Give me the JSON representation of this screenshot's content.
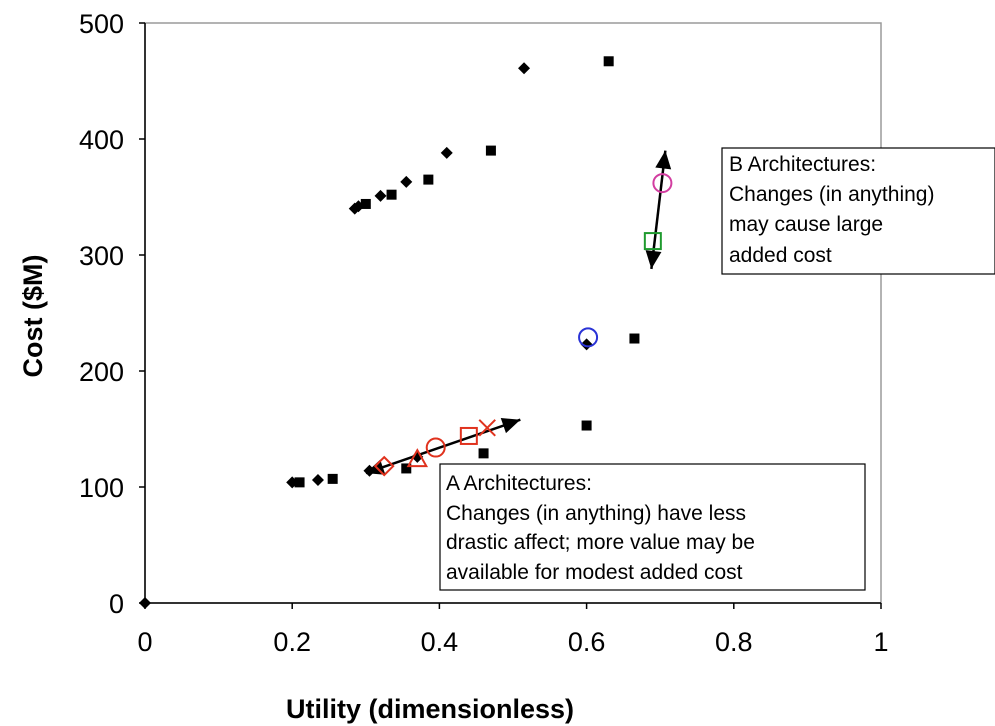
{
  "chart_data": {
    "type": "scatter",
    "title": "",
    "xlabel": "Utility (dimensionless)",
    "ylabel": "Cost ($M)",
    "xlim": [
      0,
      1
    ],
    "ylim": [
      0,
      500
    ],
    "x_ticks": [
      "0",
      "0.2",
      "0.4",
      "0.6",
      "0.8",
      "1"
    ],
    "y_ticks": [
      "0",
      "100",
      "200",
      "300",
      "400",
      "500"
    ],
    "grid": false,
    "legend": "none",
    "series": [
      {
        "marker": "diamond-filled",
        "color": "#000000",
        "points": [
          [
            0.0,
            0
          ],
          [
            0.2,
            104
          ],
          [
            0.235,
            106
          ],
          [
            0.285,
            340
          ],
          [
            0.29,
            342
          ],
          [
            0.32,
            351
          ],
          [
            0.355,
            363
          ],
          [
            0.41,
            388
          ],
          [
            0.515,
            461
          ],
          [
            0.6,
            223
          ],
          [
            0.305,
            114
          ],
          [
            0.37,
            126
          ]
        ]
      },
      {
        "marker": "square-filled",
        "color": "#000000",
        "points": [
          [
            0.21,
            104
          ],
          [
            0.255,
            107
          ],
          [
            0.3,
            344
          ],
          [
            0.335,
            352
          ],
          [
            0.385,
            365
          ],
          [
            0.47,
            390
          ],
          [
            0.63,
            467
          ],
          [
            0.665,
            228
          ],
          [
            0.6,
            153
          ],
          [
            0.46,
            129
          ],
          [
            0.355,
            116
          ]
        ]
      },
      {
        "marker": "open-red",
        "color": "#e0321e",
        "points": [
          [
            0.325,
            118
          ],
          [
            0.37,
            124
          ],
          [
            0.395,
            134
          ],
          [
            0.44,
            144
          ],
          [
            0.465,
            151
          ]
        ]
      },
      {
        "marker": "open-highlight",
        "color": "#2a33d6",
        "points": [
          [
            0.602,
            229
          ],
          [
            0.69,
            312
          ],
          [
            0.703,
            362
          ]
        ]
      }
    ],
    "arrows": [
      {
        "from": [
          0.3,
          112
        ],
        "to": [
          0.51,
          158
        ]
      },
      {
        "from": [
          0.688,
          288
        ],
        "to": [
          0.707,
          390
        ]
      }
    ],
    "annotations": [
      {
        "id": "b",
        "lines": [
          "B Architectures:",
          "Changes (in anything)",
          "may cause large",
          "added cost"
        ]
      },
      {
        "id": "a",
        "lines": [
          "A Architectures:",
          "Changes (in anything) have less",
          "drastic affect; more value may be",
          "available for modest added cost"
        ]
      }
    ]
  }
}
